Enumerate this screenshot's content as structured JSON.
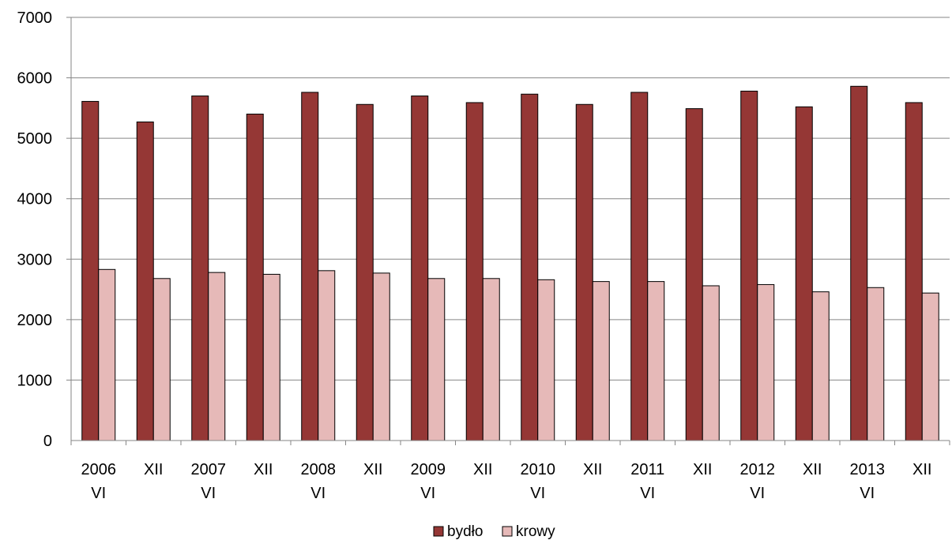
{
  "chart_data": {
    "type": "bar",
    "categories": [
      [
        "2006",
        "VI"
      ],
      [
        "XII"
      ],
      [
        "2007",
        "VI"
      ],
      [
        "XII"
      ],
      [
        "2008",
        "VI"
      ],
      [
        "XII"
      ],
      [
        "2009",
        "VI"
      ],
      [
        "XII"
      ],
      [
        "2010",
        "VI"
      ],
      [
        "XII"
      ],
      [
        "2011",
        "VI"
      ],
      [
        "XII"
      ],
      [
        "2012",
        "VI"
      ],
      [
        "XII"
      ],
      [
        "2013",
        "VI"
      ],
      [
        "XII"
      ]
    ],
    "series": [
      {
        "name": "bydło",
        "color": "#953735",
        "values": [
          5610,
          5270,
          5700,
          5400,
          5760,
          5560,
          5700,
          5590,
          5730,
          5560,
          5760,
          5490,
          5780,
          5520,
          5860,
          5590
        ]
      },
      {
        "name": "krowy",
        "color": "#e6b9b8",
        "values": [
          2830,
          2680,
          2780,
          2750,
          2810,
          2770,
          2680,
          2680,
          2660,
          2630,
          2630,
          2560,
          2580,
          2460,
          2530,
          2440
        ]
      }
    ],
    "y_ticks": [
      "0",
      "1000",
      "2000",
      "3000",
      "4000",
      "5000",
      "6000",
      "7000"
    ],
    "ylim": [
      0,
      7000
    ],
    "title": "",
    "xlabel": "",
    "ylabel": "",
    "grid": true,
    "legend_position": "bottom"
  }
}
